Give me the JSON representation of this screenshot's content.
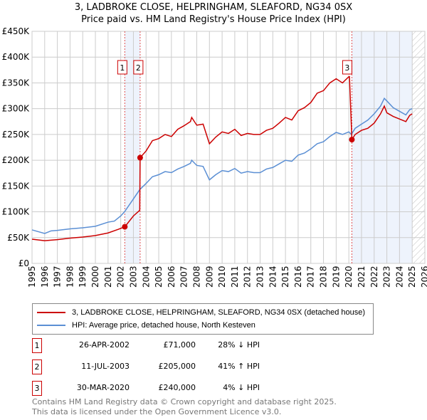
{
  "title": "3, LADBROKE CLOSE, HELPRINGHAM, SLEAFORD, NG34 0SX",
  "subtitle": "Price paid vs. HM Land Registry's House Price Index (HPI)",
  "colors": {
    "property": "#cc0000",
    "hpi": "#5b8fd4",
    "shade": "#eef3fc"
  },
  "chart_data": {
    "type": "line",
    "xlim": [
      1995,
      2026
    ],
    "ylim": [
      0,
      450000
    ],
    "x_ticks": [
      "1995",
      "1996",
      "1997",
      "1998",
      "1999",
      "2000",
      "2001",
      "2002",
      "2003",
      "2004",
      "2005",
      "2006",
      "2007",
      "2008",
      "2009",
      "2010",
      "2011",
      "2012",
      "2013",
      "2014",
      "2015",
      "2016",
      "2017",
      "2018",
      "2019",
      "2020",
      "2021",
      "2022",
      "2023",
      "2024",
      "2025",
      "2026"
    ],
    "y_ticks": [
      {
        "v": 0,
        "label": "£0"
      },
      {
        "v": 50000,
        "label": "£50K"
      },
      {
        "v": 100000,
        "label": "£100K"
      },
      {
        "v": 150000,
        "label": "£150K"
      },
      {
        "v": 200000,
        "label": "£200K"
      },
      {
        "v": 250000,
        "label": "£250K"
      },
      {
        "v": 300000,
        "label": "£300K"
      },
      {
        "v": 350000,
        "label": "£350K"
      },
      {
        "v": 400000,
        "label": "£400K"
      },
      {
        "v": 450000,
        "label": "£450K"
      }
    ],
    "grid": true,
    "shaded_ranges": [
      [
        2002.32,
        2003.53
      ],
      [
        2020.24,
        2025.0
      ]
    ],
    "hatched_from": 2025.0,
    "series": [
      {
        "name": "3, LADBROKE CLOSE, HELPRINGHAM, SLEAFORD, NG34 0SX (detached house)",
        "color": "#cc0000",
        "x": [
          1995,
          1996,
          1997,
          1998,
          1999,
          2000,
          2001,
          2001.8,
          2002.32,
          2003,
          2003.5,
          2003.53,
          2004,
          2004.5,
          2005,
          2005.5,
          2006,
          2006.5,
          2007,
          2007.5,
          2007.6,
          2008,
          2008.5,
          2009,
          2009.5,
          2010,
          2010.5,
          2011,
          2011.5,
          2012,
          2012.5,
          2013,
          2013.5,
          2014,
          2014.5,
          2015,
          2015.5,
          2016,
          2016.5,
          2017,
          2017.5,
          2018,
          2018.5,
          2019,
          2019.5,
          2020,
          2020.05,
          2020.24,
          2020.5,
          2021,
          2021.5,
          2022,
          2022.5,
          2022.8,
          2023,
          2023.5,
          2024,
          2024.5,
          2024.8,
          2025
        ],
        "y": [
          47000,
          44000,
          46000,
          49000,
          51000,
          54000,
          59000,
          66000,
          71000,
          92000,
          103000,
          205000,
          218000,
          238000,
          242000,
          250000,
          246000,
          260000,
          267000,
          275000,
          283000,
          268000,
          270000,
          232000,
          245000,
          255000,
          252000,
          260000,
          248000,
          252000,
          250000,
          250000,
          258000,
          262000,
          272000,
          283000,
          278000,
          296000,
          302000,
          312000,
          330000,
          335000,
          350000,
          358000,
          350000,
          362000,
          362000,
          240000,
          250000,
          258000,
          262000,
          272000,
          290000,
          305000,
          292000,
          285000,
          280000,
          275000,
          287000,
          290000
        ]
      },
      {
        "name": "HPI: Average price, detached house, North Kesteven",
        "color": "#5b8fd4",
        "x": [
          1995,
          1996,
          1996.5,
          1997,
          1998,
          1999,
          2000,
          2001,
          2001.5,
          2002,
          2002.3,
          2003,
          2003.5,
          2004,
          2004.5,
          2005,
          2005.5,
          2006,
          2006.5,
          2007,
          2007.5,
          2007.6,
          2008,
          2008.5,
          2009,
          2009.5,
          2010,
          2010.5,
          2011,
          2011.5,
          2012,
          2012.5,
          2013,
          2013.5,
          2014,
          2014.5,
          2015,
          2015.5,
          2016,
          2016.5,
          2017,
          2017.5,
          2018,
          2018.5,
          2019,
          2019.5,
          2020,
          2020.2,
          2020.5,
          2021,
          2021.5,
          2022,
          2022.5,
          2022.8,
          2023,
          2023.5,
          2024,
          2024.5,
          2024.8,
          2025
        ],
        "y": [
          65000,
          58000,
          63000,
          64000,
          67000,
          69000,
          72000,
          80000,
          82000,
          92000,
          100000,
          125000,
          143000,
          155000,
          168000,
          172000,
          178000,
          176000,
          183000,
          188000,
          194000,
          200000,
          190000,
          188000,
          162000,
          172000,
          180000,
          178000,
          184000,
          175000,
          178000,
          176000,
          176000,
          183000,
          186000,
          193000,
          200000,
          198000,
          210000,
          214000,
          222000,
          232000,
          236000,
          246000,
          254000,
          250000,
          255000,
          250000,
          262000,
          270000,
          278000,
          290000,
          305000,
          320000,
          315000,
          302000,
          295000,
          288000,
          298000,
          300000
        ]
      }
    ],
    "sales": [
      {
        "label": "1",
        "x": 2002.32,
        "y": 71000
      },
      {
        "label": "2",
        "x": 2003.53,
        "y": 205000
      },
      {
        "label": "3",
        "x": 2020.24,
        "y": 240000
      }
    ]
  },
  "legend": {
    "property": "3, LADBROKE CLOSE, HELPRINGHAM, SLEAFORD, NG34 0SX (detached house)",
    "hpi": "HPI: Average price, detached house, North Kesteven"
  },
  "transactions": [
    {
      "num": "1",
      "date": "26-APR-2002",
      "price": "£71,000",
      "hpi": "28% ↓ HPI"
    },
    {
      "num": "2",
      "date": "11-JUL-2003",
      "price": "£205,000",
      "hpi": "41% ↑ HPI"
    },
    {
      "num": "3",
      "date": "30-MAR-2020",
      "price": "£240,000",
      "hpi": "4% ↓ HPI"
    }
  ],
  "footer": [
    "Contains HM Land Registry data © Crown copyright and database right 2025.",
    "This data is licensed under the Open Government Licence v3.0."
  ]
}
